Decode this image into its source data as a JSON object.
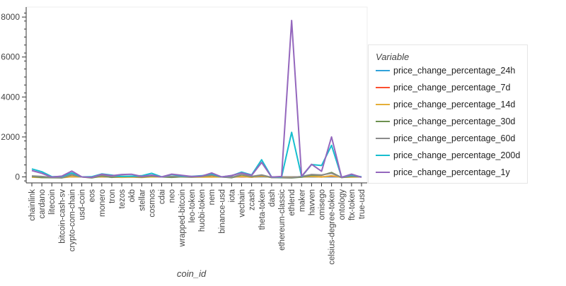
{
  "chart_data": {
    "type": "line",
    "xlabel": "coin_id",
    "ylabel": "",
    "ylim": [
      -300,
      8500
    ],
    "yticks": [
      0,
      2000,
      4000,
      6000,
      8000
    ],
    "grid": false,
    "legend_placement": "right",
    "legend_title": "Variable",
    "categories": [
      "chainlink",
      "cardano",
      "litecoin",
      "bitcoin-cash-sv",
      "crypto-com-chain",
      "usd-coin",
      "eos",
      "monero",
      "tron",
      "tezos",
      "okb",
      "stellar",
      "cosmos",
      "cdai",
      "neo",
      "wrapped-bitcoin",
      "leo-token",
      "huobi-token",
      "nem",
      "binance-usd",
      "iota",
      "vechain",
      "zcash",
      "theta-token",
      "dash",
      "ethereum-classic",
      "ethlend",
      "maker",
      "havven",
      "omisego",
      "celsius-degree-token",
      "ontology",
      "ftx-token",
      "true-usd"
    ],
    "series": [
      {
        "name": "price_change_percentage_24h",
        "color": "#30a2da",
        "values": [
          2,
          1,
          -1,
          0,
          1,
          0,
          0,
          0,
          1,
          -1,
          0,
          0,
          1,
          0,
          1,
          0,
          0,
          1,
          0,
          0,
          0,
          1,
          2,
          3,
          1,
          0,
          1,
          0,
          1,
          2,
          3,
          0,
          1,
          0
        ]
      },
      {
        "name": "price_change_percentage_7d",
        "color": "#fc4f30",
        "values": [
          10,
          5,
          -3,
          -8,
          15,
          0,
          -5,
          8,
          -3,
          2,
          5,
          -2,
          6,
          0,
          8,
          1,
          -2,
          3,
          5,
          0,
          -4,
          10,
          -5,
          30,
          -8,
          -5,
          -12,
          2,
          18,
          5,
          35,
          -10,
          7,
          0
        ]
      },
      {
        "name": "price_change_percentage_14d",
        "color": "#e5ae38",
        "values": [
          -15,
          -30,
          -20,
          -40,
          10,
          0,
          -30,
          15,
          -5,
          -20,
          -10,
          -25,
          5,
          0,
          -10,
          0,
          -10,
          -5,
          -5,
          0,
          -20,
          20,
          -15,
          40,
          -25,
          -20,
          -15,
          -10,
          30,
          -5,
          60,
          -20,
          -10,
          0
        ]
      },
      {
        "name": "price_change_percentage_30d",
        "color": "#6d904f",
        "values": [
          30,
          -30,
          -40,
          -50,
          100,
          0,
          -50,
          50,
          -20,
          30,
          20,
          -10,
          40,
          0,
          -20,
          10,
          -5,
          30,
          80,
          0,
          -40,
          100,
          10,
          80,
          -30,
          -40,
          -50,
          -10,
          80,
          80,
          220,
          -30,
          30,
          0
        ]
      },
      {
        "name": "price_change_percentage_60d",
        "color": "#8b8b8b",
        "values": [
          50,
          20,
          -20,
          -40,
          120,
          0,
          -30,
          80,
          20,
          40,
          30,
          10,
          60,
          0,
          30,
          20,
          0,
          40,
          100,
          0,
          -20,
          120,
          30,
          100,
          -20,
          -30,
          -30,
          20,
          120,
          100,
          180,
          -20,
          50,
          0
        ]
      },
      {
        "name": "price_change_percentage_200d",
        "color": "#17becf",
        "values": [
          400,
          260,
          10,
          20,
          200,
          0,
          10,
          150,
          90,
          20,
          40,
          60,
          180,
          0,
          120,
          50,
          30,
          60,
          150,
          0,
          60,
          240,
          100,
          860,
          -10,
          0,
          2230,
          10,
          620,
          570,
          1580,
          -10,
          100,
          0
        ]
      },
      {
        "name": "price_change_percentage_1y",
        "color": "#9467bd",
        "values": [
          320,
          180,
          -10,
          40,
          290,
          0,
          -20,
          130,
          60,
          120,
          130,
          30,
          90,
          0,
          140,
          80,
          20,
          40,
          200,
          0,
          70,
          200,
          80,
          720,
          -10,
          20,
          7830,
          30,
          630,
          280,
          2000,
          -20,
          140,
          -20
        ]
      }
    ]
  }
}
